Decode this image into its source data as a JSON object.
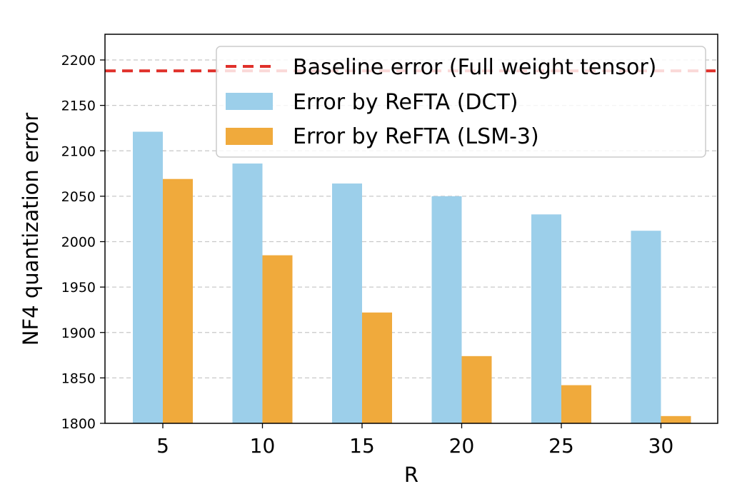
{
  "chart_data": {
    "type": "bar",
    "title": "",
    "xlabel": "R",
    "ylabel": "NF4  quantization error",
    "categories": [
      "5",
      "10",
      "15",
      "20",
      "25",
      "30"
    ],
    "series": [
      {
        "name": "Error by ReFTA (DCT)",
        "color": "#9ccfea",
        "values": [
          2121,
          2086,
          2064,
          2050,
          2030,
          2012
        ]
      },
      {
        "name": "Error by ReFTA (LSM-3)",
        "color": "#f0aa3c",
        "values": [
          2069,
          1985,
          1922,
          1874,
          1842,
          1808
        ]
      }
    ],
    "baseline": {
      "name": "Baseline error (Full weight tensor)",
      "value": 2188,
      "color": "#e0302a",
      "style": "dashed"
    },
    "ylim": [
      1800,
      2220
    ],
    "yticks": [
      1800,
      1850,
      1900,
      1950,
      2000,
      2050,
      2100,
      2150,
      2200
    ],
    "grid": "y-dashed",
    "legend_position": "top-right"
  }
}
